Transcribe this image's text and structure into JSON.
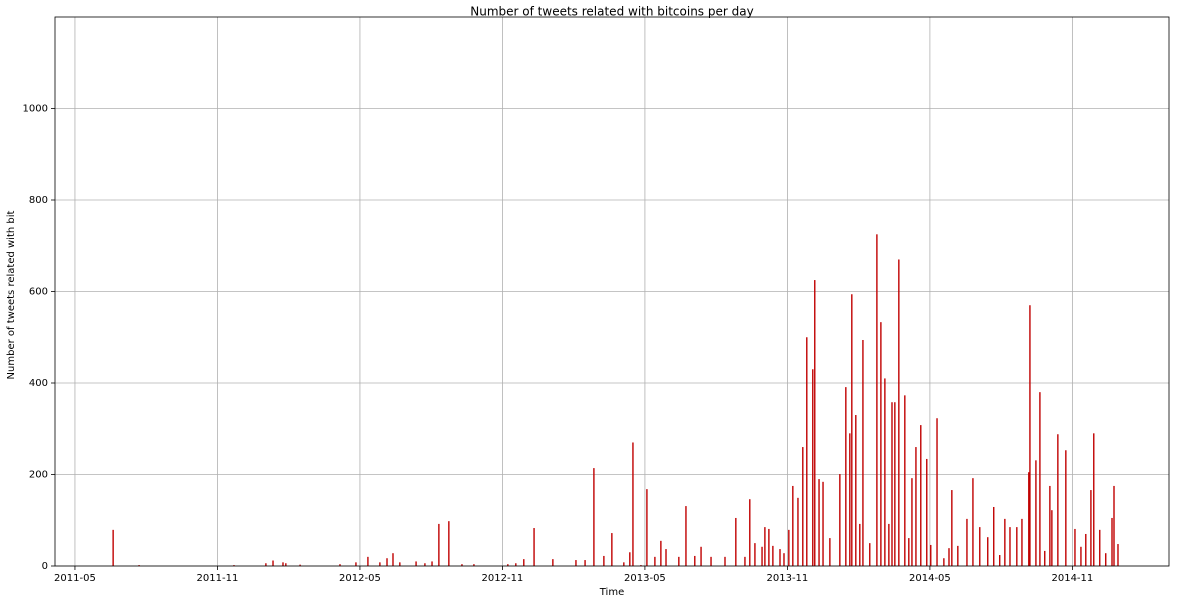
{
  "chart_data": {
    "type": "bar",
    "title": "Number of tweets related with bitcoins per day",
    "x_label": "Time",
    "y_label": "Number of tweets related with bit",
    "color": "#c00000",
    "grid": true,
    "xlim": [
      2011.263,
      2015.172
    ],
    "ylim": [
      0,
      1200
    ],
    "xticks": [
      {
        "value": 2011.333,
        "label": "2011-05"
      },
      {
        "value": 2011.833,
        "label": "2011-11"
      },
      {
        "value": 2012.333,
        "label": "2012-05"
      },
      {
        "value": 2012.833,
        "label": "2012-11"
      },
      {
        "value": 2013.333,
        "label": "2013-05"
      },
      {
        "value": 2013.833,
        "label": "2013-11"
      },
      {
        "value": 2014.333,
        "label": "2014-05"
      },
      {
        "value": 2014.833,
        "label": "2014-11"
      }
    ],
    "yticks": [
      0,
      200,
      400,
      600,
      800,
      1000
    ],
    "x": [
      2011.467,
      2011.558,
      2011.891,
      2012.003,
      2012.028,
      2012.063,
      2012.073,
      2012.123,
      2012.263,
      2012.319,
      2012.361,
      2012.403,
      2012.428,
      2012.449,
      2012.473,
      2012.53,
      2012.561,
      2012.586,
      2012.61,
      2012.645,
      2012.691,
      2012.733,
      2012.852,
      2012.88,
      2012.908,
      2012.944,
      2013.01,
      2013.091,
      2013.123,
      2013.154,
      2013.189,
      2013.217,
      2013.259,
      2013.28,
      2013.291,
      2013.319,
      2013.34,
      2013.368,
      2013.389,
      2013.407,
      2013.452,
      2013.477,
      2013.508,
      2013.53,
      2013.565,
      2013.614,
      2013.652,
      2013.684,
      2013.701,
      2013.719,
      2013.744,
      2013.754,
      2013.768,
      2013.782,
      2013.807,
      2013.821,
      2013.838,
      2013.852,
      2013.87,
      2013.887,
      2013.901,
      2013.922,
      2013.929,
      2013.944,
      2013.958,
      2013.982,
      2014.017,
      2014.038,
      2014.052,
      2014.059,
      2014.073,
      2014.087,
      2014.098,
      2014.122,
      2014.147,
      2014.161,
      2014.175,
      2014.189,
      2014.2,
      2014.21,
      2014.224,
      2014.245,
      2014.259,
      2014.27,
      2014.284,
      2014.301,
      2014.322,
      2014.336,
      2014.358,
      2014.382,
      2014.4,
      2014.41,
      2014.431,
      2014.463,
      2014.484,
      2014.508,
      2014.536,
      2014.557,
      2014.578,
      2014.596,
      2014.614,
      2014.638,
      2014.656,
      2014.68,
      2014.684,
      2014.705,
      2014.719,
      2014.736,
      2014.754,
      2014.761,
      2014.782,
      2014.81,
      2014.842,
      2014.863,
      2014.88,
      2014.898,
      2014.908,
      2014.929,
      2014.95,
      2014.972,
      2014.979,
      2014.993
    ],
    "values": [
      79,
      2,
      2,
      6,
      12,
      8,
      6,
      3,
      4,
      8,
      20,
      8,
      17,
      28,
      8,
      10,
      6,
      10,
      92,
      98,
      4,
      4,
      4,
      6,
      15,
      83,
      15,
      13,
      13,
      214,
      22,
      72,
      8,
      30,
      270,
      2,
      168,
      20,
      55,
      37,
      20,
      131,
      22,
      42,
      20,
      20,
      105,
      20,
      146,
      50,
      42,
      85,
      81,
      44,
      37,
      28,
      79,
      175,
      149,
      260,
      500,
      430,
      625,
      190,
      184,
      61,
      201,
      391,
      290,
      594,
      330,
      92,
      494,
      50,
      725,
      533,
      410,
      92,
      358,
      358,
      670,
      373,
      61,
      192,
      260,
      308,
      234,
      46,
      323,
      17,
      39,
      166,
      44,
      103,
      192,
      85,
      63,
      129,
      24,
      103,
      85,
      85,
      103,
      205,
      570,
      231,
      380,
      33,
      175,
      122,
      288,
      253,
      81,
      42,
      70,
      166,
      290,
      79,
      28,
      105,
      175,
      48
    ]
  }
}
